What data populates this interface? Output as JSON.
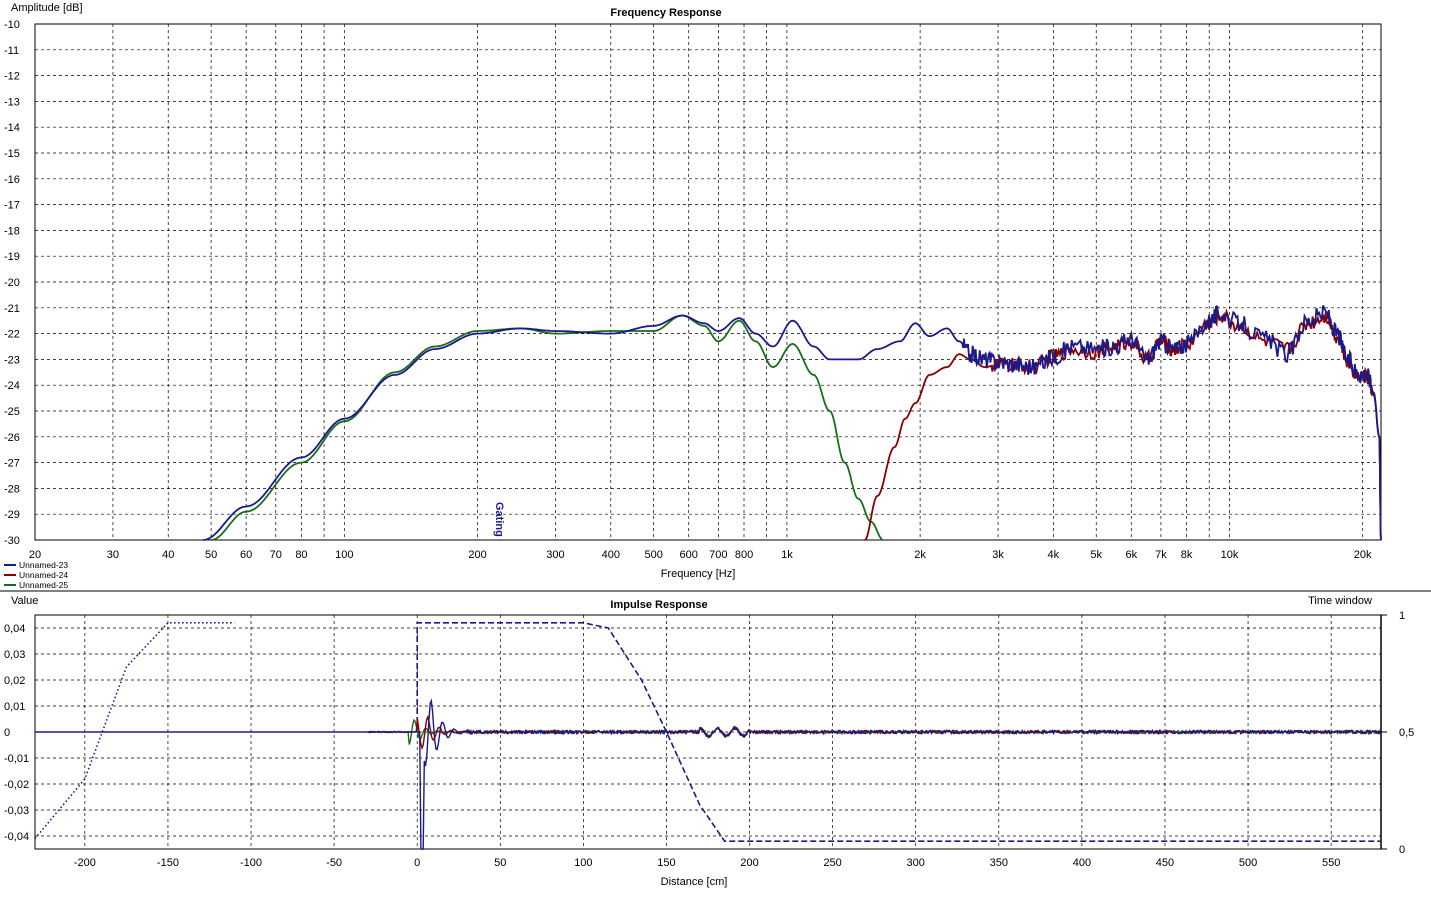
{
  "colors": {
    "series_blue": "#1a1a8c",
    "series_red": "#8b0000",
    "series_green": "#1a6e1a",
    "grid": "#000000",
    "background": "#ffffff"
  },
  "chart_data": [
    {
      "type": "line",
      "title": "Frequency Response",
      "xlabel": "Frequency [Hz]",
      "ylabel": "Amplitude [dB]",
      "xscale": "log",
      "xlim": [
        20,
        22000
      ],
      "ylim": [
        -30,
        -10
      ],
      "grid": true,
      "legend_position": "bottom-left",
      "x_tick_labels": [
        "20",
        "30",
        "40",
        "50",
        "60",
        "70",
        "80",
        "100",
        "200",
        "300",
        "400",
        "500",
        "600",
        "700",
        "800",
        "1k",
        "2k",
        "3k",
        "4k",
        "5k",
        "6k",
        "7k",
        "8k",
        "10k",
        "20k"
      ],
      "x_tick_values": [
        20,
        30,
        40,
        50,
        60,
        70,
        80,
        100,
        200,
        300,
        400,
        500,
        600,
        700,
        800,
        1000,
        2000,
        3000,
        4000,
        5000,
        6000,
        7000,
        8000,
        10000,
        20000
      ],
      "y_tick_labels": [
        "-10",
        "-11",
        "-12",
        "-13",
        "-14",
        "-15",
        "-16",
        "-17",
        "-18",
        "-19",
        "-20",
        "-21",
        "-22",
        "-23",
        "-24",
        "-25",
        "-26",
        "-27",
        "-28",
        "-29",
        "-30"
      ],
      "marker_label": "Gating",
      "marker_x": 225,
      "series": [
        {
          "name": "Unnamed-23",
          "color": "#1a1a8c",
          "points": [
            [
              48,
              -30
            ],
            [
              60,
              -28.7
            ],
            [
              80,
              -26.8
            ],
            [
              100,
              -25.3
            ],
            [
              130,
              -23.6
            ],
            [
              160,
              -22.6
            ],
            [
              200,
              -22.0
            ],
            [
              250,
              -21.8
            ],
            [
              300,
              -21.9
            ],
            [
              400,
              -22.0
            ],
            [
              500,
              -21.7
            ],
            [
              580,
              -21.3
            ],
            [
              650,
              -21.6
            ],
            [
              700,
              -21.9
            ],
            [
              780,
              -21.4
            ],
            [
              850,
              -22.0
            ],
            [
              930,
              -22.5
            ],
            [
              1030,
              -21.5
            ],
            [
              1150,
              -22.5
            ],
            [
              1250,
              -23.0
            ],
            [
              1450,
              -23.0
            ],
            [
              1600,
              -22.6
            ],
            [
              1800,
              -22.3
            ],
            [
              1950,
              -21.6
            ],
            [
              2100,
              -22.1
            ],
            [
              2300,
              -21.8
            ],
            [
              2450,
              -22.3
            ],
            [
              2600,
              -22.8
            ],
            [
              2800,
              -23.0
            ],
            [
              3000,
              -23.1
            ],
            [
              3300,
              -23.2
            ],
            [
              3600,
              -23.3
            ],
            [
              4000,
              -22.9
            ],
            [
              4400,
              -22.5
            ],
            [
              5000,
              -22.6
            ],
            [
              5500,
              -22.5
            ],
            [
              6000,
              -22.2
            ],
            [
              6500,
              -23.0
            ],
            [
              7000,
              -22.3
            ],
            [
              7500,
              -22.6
            ],
            [
              8000,
              -22.4
            ],
            [
              9000,
              -21.5
            ],
            [
              9500,
              -21.2
            ],
            [
              10500,
              -21.6
            ],
            [
              12000,
              -22.2
            ],
            [
              13500,
              -22.8
            ],
            [
              15000,
              -21.5
            ],
            [
              16500,
              -21.2
            ],
            [
              17500,
              -22.0
            ],
            [
              18500,
              -23.0
            ],
            [
              19500,
              -23.5
            ],
            [
              20500,
              -23.6
            ],
            [
              21200,
              -24.3
            ],
            [
              21800,
              -26.0
            ],
            [
              22000,
              -30
            ]
          ],
          "roughness": 0.35,
          "rough_from": 2500
        },
        {
          "name": "Unnamed-24",
          "color": "#8b0000",
          "points": [
            [
              1500,
              -30
            ],
            [
              1600,
              -28.3
            ],
            [
              1750,
              -26.4
            ],
            [
              1850,
              -25.3
            ],
            [
              1950,
              -24.7
            ],
            [
              2100,
              -23.6
            ],
            [
              2300,
              -23.3
            ],
            [
              2450,
              -22.8
            ],
            [
              2600,
              -23.0
            ],
            [
              2800,
              -23.3
            ],
            [
              3000,
              -23.2
            ],
            [
              3300,
              -23.2
            ],
            [
              3600,
              -23.3
            ],
            [
              4000,
              -22.9
            ],
            [
              4400,
              -22.6
            ],
            [
              5000,
              -22.7
            ],
            [
              5500,
              -22.5
            ],
            [
              6000,
              -22.3
            ],
            [
              6500,
              -23.0
            ],
            [
              7000,
              -22.3
            ],
            [
              7500,
              -22.6
            ],
            [
              8000,
              -22.4
            ],
            [
              9000,
              -21.6
            ],
            [
              9500,
              -21.3
            ],
            [
              10500,
              -21.7
            ],
            [
              12000,
              -22.3
            ],
            [
              13500,
              -22.6
            ],
            [
              15000,
              -21.6
            ],
            [
              16500,
              -21.3
            ],
            [
              17500,
              -22.1
            ],
            [
              18500,
              -23.1
            ],
            [
              19500,
              -23.6
            ],
            [
              20500,
              -23.7
            ],
            [
              21200,
              -24.4
            ],
            [
              21800,
              -26.0
            ],
            [
              22000,
              -30
            ]
          ],
          "roughness": 0.3,
          "rough_from": 2900
        },
        {
          "name": "Unnamed-25",
          "color": "#1a6e1a",
          "points": [
            [
              50,
              -30
            ],
            [
              60,
              -28.9
            ],
            [
              80,
              -27.0
            ],
            [
              100,
              -25.4
            ],
            [
              130,
              -23.5
            ],
            [
              160,
              -22.5
            ],
            [
              200,
              -21.9
            ],
            [
              250,
              -21.8
            ],
            [
              300,
              -22.0
            ],
            [
              400,
              -21.9
            ],
            [
              500,
              -21.9
            ],
            [
              580,
              -21.3
            ],
            [
              650,
              -21.7
            ],
            [
              700,
              -22.3
            ],
            [
              780,
              -21.5
            ],
            [
              850,
              -22.3
            ],
            [
              930,
              -23.3
            ],
            [
              1030,
              -22.4
            ],
            [
              1150,
              -23.6
            ],
            [
              1250,
              -25.0
            ],
            [
              1350,
              -27.0
            ],
            [
              1450,
              -28.4
            ],
            [
              1550,
              -29.3
            ],
            [
              1650,
              -30.0
            ]
          ],
          "roughness": 0,
          "rough_from": 0
        }
      ]
    },
    {
      "type": "line",
      "title": "Impulse Response",
      "xlabel": "Distance [cm]",
      "ylabel": "Value",
      "y2label": "Time window",
      "xlim": [
        -230,
        580
      ],
      "ylim": [
        -0.045,
        0.045
      ],
      "y2lim": [
        0,
        1
      ],
      "grid": true,
      "x_tick_labels": [
        "-200",
        "-150",
        "-100",
        "-50",
        "0",
        "50",
        "100",
        "150",
        "200",
        "250",
        "300",
        "350",
        "400",
        "450",
        "500",
        "550"
      ],
      "x_tick_values": [
        -200,
        -150,
        -100,
        -50,
        0,
        50,
        100,
        150,
        200,
        250,
        300,
        350,
        400,
        450,
        500,
        550
      ],
      "y_tick_labels": [
        "0,04",
        "0,03",
        "0,02",
        "0,01",
        "0",
        "-0,01",
        "-0,02",
        "-0,03",
        "-0,04"
      ],
      "y_tick_values": [
        0.04,
        0.03,
        0.02,
        0.01,
        0,
        -0.01,
        -0.02,
        -0.03,
        -0.04
      ],
      "y2_tick_labels": [
        "1",
        "0,5",
        "0"
      ],
      "y2_tick_values": [
        1,
        0.5,
        0
      ],
      "windows": [
        {
          "style": "dotted",
          "points": [
            [
              -230,
              -0.041
            ],
            [
              -200,
              -0.018
            ],
            [
              -175,
              0.025
            ],
            [
              -150,
              0.042
            ],
            [
              -110,
              0.042
            ]
          ]
        },
        {
          "style": "dashed",
          "points": [
            [
              0,
              0
            ],
            [
              0,
              0.042
            ],
            [
              100,
              0.042
            ],
            [
              115,
              0.04
            ],
            [
              135,
              0.02
            ],
            [
              150,
              0
            ],
            [
              170,
              -0.028
            ],
            [
              185,
              -0.042
            ],
            [
              580,
              -0.042
            ]
          ]
        }
      ],
      "series": [
        {
          "name": "Unnamed-23",
          "color": "#1a1a8c",
          "impulse": {
            "pos": 8,
            "peak": 0.013,
            "neg": -0.045
          }
        },
        {
          "name": "Unnamed-24",
          "color": "#8b0000",
          "impulse": {
            "pos": 6,
            "peak": 0.006,
            "neg": -0.004
          }
        },
        {
          "name": "Unnamed-25",
          "color": "#1a6e1a",
          "impulse": {
            "pos": -2,
            "peak": 0.005,
            "neg": -0.003
          }
        }
      ]
    }
  ]
}
